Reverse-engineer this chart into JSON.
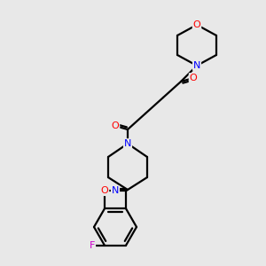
{
  "background_color": "#e8e8e8",
  "bond_color": "#000000",
  "atom_colors": {
    "N": "#0000ff",
    "O": "#ff0000",
    "F": "#cc00cc"
  },
  "figsize": [
    3.0,
    3.0
  ],
  "dpi": 100,
  "lw": 1.6
}
